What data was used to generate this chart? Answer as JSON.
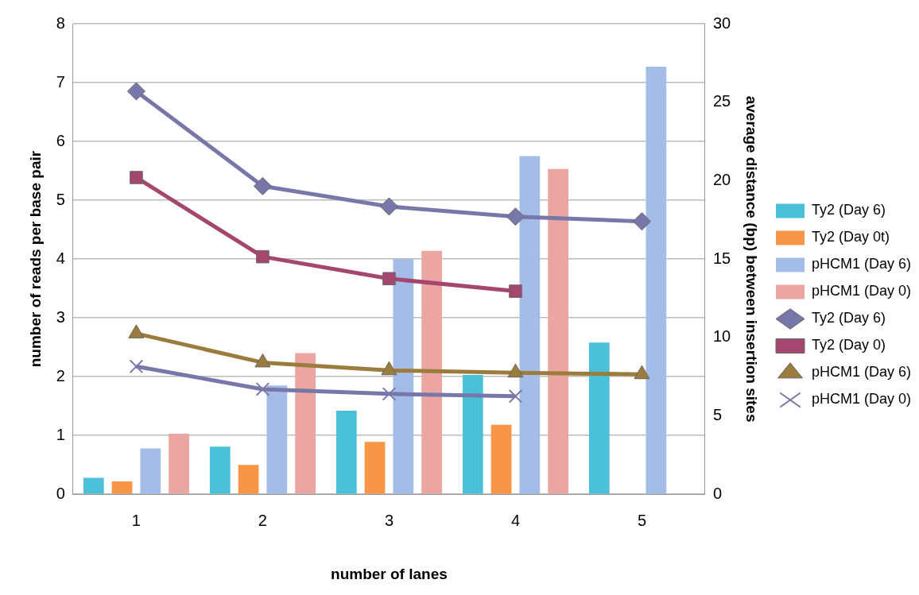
{
  "chart_data": {
    "type": "bar",
    "xlabel": "number of lanes",
    "ylabel": "number of reads per base pair",
    "y2label": "average distance (bp) between insertion sites",
    "categories": [
      "1",
      "2",
      "3",
      "4",
      "5"
    ],
    "series": [
      {
        "name": "Ty2 (Day 6)",
        "color": "#4bc0d9",
        "values": [
          0.28,
          0.81,
          1.42,
          2.03,
          2.58
        ]
      },
      {
        "name": "Ty2 (Day 0t)",
        "color": "#f79646",
        "values": [
          0.22,
          0.5,
          0.89,
          1.18,
          null
        ]
      },
      {
        "name": "pHCM1 (Day 6)",
        "color": "#a3bde8",
        "values": [
          0.78,
          1.85,
          4.0,
          5.75,
          7.27
        ]
      },
      {
        "name": "pHCM1 (Day 0)",
        "color": "#eba6a1",
        "values": [
          1.03,
          2.4,
          4.14,
          5.53,
          null
        ]
      },
      {
        "name": "Ty2 (Day 6)",
        "type": "line",
        "axis": "y2",
        "marker": "diamond",
        "color": "#7777aa",
        "values": [
          25.7,
          19.65,
          18.35,
          17.7,
          17.4
        ]
      },
      {
        "name": "Ty2 (Day 0)",
        "type": "line",
        "axis": "y2",
        "marker": "square",
        "color": "#a4466e",
        "values": [
          20.2,
          15.15,
          13.75,
          12.95,
          null
        ]
      },
      {
        "name": "pHCM1 (Day 6)",
        "type": "line",
        "axis": "y2",
        "marker": "triangle",
        "color": "#9c7c3c",
        "values": [
          10.25,
          8.4,
          7.9,
          7.75,
          7.65
        ]
      },
      {
        "name": "pHCM1 (Day 0)",
        "type": "line",
        "axis": "y2",
        "marker": "cross",
        "color": "#7777aa",
        "values": [
          8.15,
          6.7,
          6.4,
          6.25,
          null
        ]
      }
    ],
    "ylim": [
      0,
      8
    ],
    "yticks": [
      0,
      1,
      2,
      3,
      4,
      5,
      6,
      7,
      8
    ],
    "y2lim": [
      0,
      30
    ],
    "y2ticks": [
      0,
      5,
      10,
      15,
      20,
      25,
      30
    ],
    "grid": "y",
    "legend": "right"
  }
}
